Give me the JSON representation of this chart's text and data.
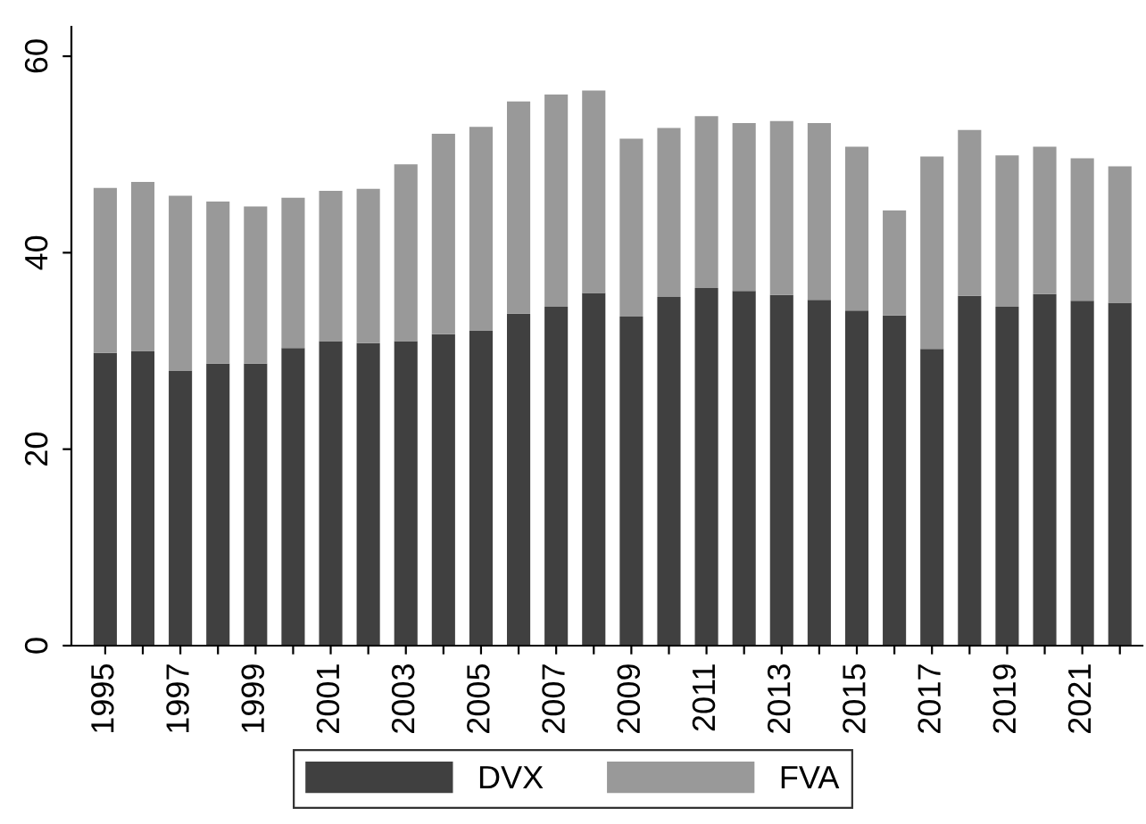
{
  "chart_data": {
    "type": "bar",
    "stacked": true,
    "categories": [
      "1995",
      null,
      "1997",
      null,
      "1999",
      null,
      "2001",
      null,
      "2003",
      null,
      "2005",
      null,
      "2007",
      null,
      "2009",
      null,
      "2011",
      null,
      "2013",
      null,
      "2015",
      null,
      "2017",
      null,
      "2019",
      null,
      "2021",
      null
    ],
    "series": [
      {
        "name": "DVX",
        "color": "#404040",
        "values": [
          29.8,
          30.0,
          28.0,
          28.7,
          28.7,
          30.3,
          31.0,
          30.8,
          31.0,
          31.7,
          32.1,
          33.8,
          34.5,
          35.9,
          33.5,
          35.5,
          36.4,
          36.1,
          35.7,
          35.2,
          34.1,
          33.6,
          30.2,
          35.6,
          34.5,
          35.8,
          35.1,
          34.9
        ]
      },
      {
        "name": "FVA",
        "color": "#999999",
        "values": [
          16.8,
          17.2,
          17.8,
          16.5,
          16.0,
          15.3,
          15.3,
          15.7,
          18.0,
          20.4,
          20.7,
          21.6,
          21.6,
          20.6,
          18.1,
          17.2,
          17.5,
          17.1,
          17.7,
          18.0,
          16.7,
          10.7,
          19.6,
          16.9,
          15.4,
          15.0,
          14.5,
          13.9
        ]
      }
    ],
    "ylim": [
      0,
      63
    ],
    "yticks": [
      0,
      20,
      40,
      60
    ],
    "grid": false,
    "legend": "bottom"
  }
}
